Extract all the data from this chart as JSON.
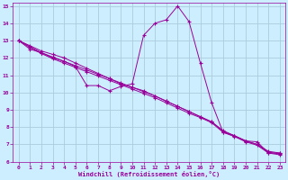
{
  "xlabel": "Windchill (Refroidissement éolien,°C)",
  "bg_color": "#cceeff",
  "grid_color": "#aaccdd",
  "line_color": "#990099",
  "xlim": [
    -0.5,
    23.5
  ],
  "ylim": [
    6,
    15.2
  ],
  "xticks": [
    0,
    1,
    2,
    3,
    4,
    5,
    6,
    7,
    8,
    9,
    10,
    11,
    12,
    13,
    14,
    15,
    16,
    17,
    18,
    19,
    20,
    21,
    22,
    23
  ],
  "yticks": [
    6,
    7,
    8,
    9,
    10,
    11,
    12,
    13,
    14,
    15
  ],
  "line_spike_x": [
    0,
    1,
    2,
    3,
    4,
    5,
    6,
    7,
    8,
    9,
    10,
    11,
    12,
    13,
    14,
    15,
    16,
    17,
    18,
    19,
    20,
    21,
    22,
    23
  ],
  "line_spike_y": [
    13.0,
    12.5,
    12.3,
    12.0,
    11.8,
    11.5,
    10.4,
    10.4,
    10.1,
    10.35,
    10.5,
    13.3,
    14.0,
    14.2,
    15.0,
    14.1,
    11.7,
    9.4,
    7.7,
    7.5,
    7.2,
    7.15,
    6.5,
    6.5
  ],
  "line_diag1_x": [
    0,
    1,
    2,
    3,
    4,
    5,
    6,
    7,
    8,
    9,
    10,
    11,
    12,
    13,
    14,
    15,
    16,
    17,
    18,
    19,
    20,
    21,
    22,
    23
  ],
  "line_diag1_y": [
    13.0,
    12.7,
    12.4,
    12.2,
    12.0,
    11.7,
    11.4,
    11.1,
    10.8,
    10.5,
    10.3,
    10.1,
    9.8,
    9.5,
    9.2,
    8.9,
    8.6,
    8.3,
    7.8,
    7.5,
    7.2,
    7.0,
    6.6,
    6.5
  ],
  "line_diag2_x": [
    0,
    1,
    2,
    3,
    4,
    5,
    6,
    7,
    8,
    9,
    10,
    11,
    12,
    13,
    14,
    15,
    16,
    17,
    18,
    19,
    20,
    21,
    22,
    23
  ],
  "line_diag2_y": [
    13.0,
    12.65,
    12.3,
    12.05,
    11.8,
    11.55,
    11.3,
    11.05,
    10.8,
    10.55,
    10.3,
    10.05,
    9.8,
    9.5,
    9.2,
    8.9,
    8.6,
    8.3,
    7.75,
    7.5,
    7.2,
    7.0,
    6.55,
    6.45
  ],
  "line_diag3_x": [
    0,
    1,
    2,
    3,
    4,
    5,
    6,
    7,
    8,
    9,
    10,
    11,
    12,
    13,
    14,
    15,
    16,
    17,
    18,
    19,
    20,
    21,
    22,
    23
  ],
  "line_diag3_y": [
    13.0,
    12.6,
    12.25,
    11.95,
    11.7,
    11.45,
    11.2,
    10.95,
    10.7,
    10.45,
    10.2,
    9.95,
    9.7,
    9.4,
    9.1,
    8.8,
    8.55,
    8.25,
    7.7,
    7.45,
    7.15,
    6.95,
    6.5,
    6.4
  ]
}
